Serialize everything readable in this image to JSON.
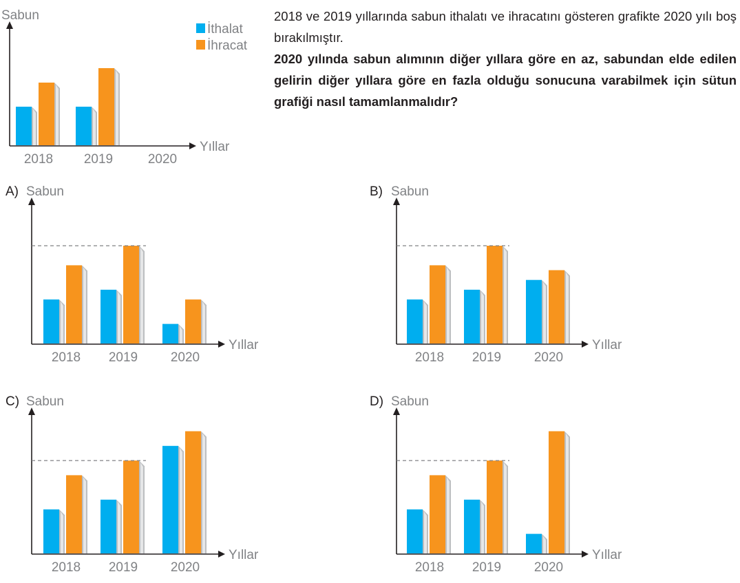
{
  "question": {
    "intro": "2018 ve 2019 yıllarında sabun ithalatı ve ihracatını gösteren grafikte 2020 yılı boş bırakılmıştır.",
    "prompt": "2020 yılında sabun alımının diğer yıllara göre en az, sabundan elde edilen gelirin diğer yıllara göre en fazla olduğu sonucuna varabilmek için sütun grafiği nasıl tamamlanmalıdır?"
  },
  "colors": {
    "ithalat": "#00aeef",
    "ihracat": "#f7941d",
    "axis": "#231f20",
    "label": "#808285",
    "dashed": "#808285"
  },
  "chart_data": [
    {
      "id": "main",
      "type": "bar",
      "option_label": "",
      "ylabel": "Sabun",
      "xlabel": "Yıllar",
      "categories": [
        "2018",
        "2019",
        "2020"
      ],
      "legend": [
        "İthalat",
        "İhracat"
      ],
      "legend_position": "top-right",
      "series": [
        {
          "name": "İthalat",
          "values": [
            8,
            8,
            null
          ]
        },
        {
          "name": "İhracat",
          "values": [
            13,
            16,
            null
          ]
        }
      ],
      "reference_line": false
    },
    {
      "id": "A",
      "type": "bar",
      "option_label": "A)",
      "ylabel": "Sabun",
      "xlabel": "Yıllar",
      "categories": [
        "2018",
        "2019",
        "2020"
      ],
      "series": [
        {
          "name": "İthalat",
          "values": [
            9,
            11,
            4
          ]
        },
        {
          "name": "İhracat",
          "values": [
            16,
            20,
            9
          ]
        }
      ],
      "reference_line": true
    },
    {
      "id": "B",
      "type": "bar",
      "option_label": "B)",
      "ylabel": "Sabun",
      "xlabel": "Yıllar",
      "categories": [
        "2018",
        "2019",
        "2020"
      ],
      "series": [
        {
          "name": "İthalat",
          "values": [
            9,
            11,
            13
          ]
        },
        {
          "name": "İhracat",
          "values": [
            16,
            20,
            15
          ]
        }
      ],
      "reference_line": true
    },
    {
      "id": "C",
      "type": "bar",
      "option_label": "C)",
      "ylabel": "Sabun",
      "xlabel": "Yıllar",
      "categories": [
        "2018",
        "2019",
        "2020"
      ],
      "series": [
        {
          "name": "İthalat",
          "values": [
            9,
            11,
            22
          ]
        },
        {
          "name": "İhracat",
          "values": [
            16,
            19,
            25
          ]
        }
      ],
      "reference_line": true
    },
    {
      "id": "D",
      "type": "bar",
      "option_label": "D)",
      "ylabel": "Sabun",
      "xlabel": "Yıllar",
      "categories": [
        "2018",
        "2019",
        "2020"
      ],
      "series": [
        {
          "name": "İthalat",
          "values": [
            9,
            11,
            4
          ]
        },
        {
          "name": "İhracat",
          "values": [
            16,
            19,
            25
          ]
        }
      ],
      "reference_line": true
    }
  ]
}
